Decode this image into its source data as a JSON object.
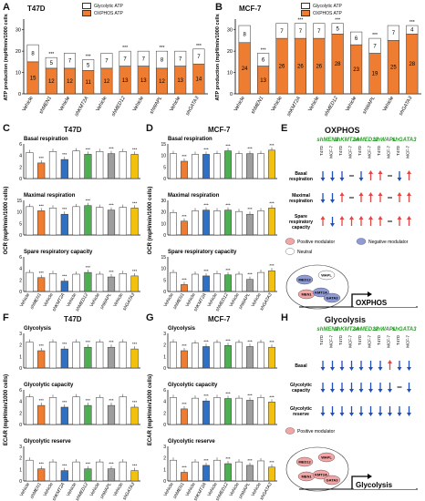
{
  "panels": {
    "A": {
      "label": "A",
      "title": "T47D"
    },
    "B": {
      "label": "B",
      "title": "MCF-7"
    },
    "C": {
      "label": "C",
      "title": "T47D"
    },
    "D": {
      "label": "D",
      "title": "MCF-7"
    },
    "E": {
      "label": "E",
      "title": "OXPHOS"
    },
    "F": {
      "label": "F",
      "title": "T47D"
    },
    "G": {
      "label": "G",
      "title": "MCF-7"
    },
    "H": {
      "label": "H",
      "title": "Glycolysis"
    }
  },
  "legend_atp": {
    "glyco": "Glycolytic ATP",
    "oxphos": "OXPHOS ATP"
  },
  "colors": {
    "orange": "#ee7d31",
    "blue": "#2f6fc4",
    "green": "#4caf50",
    "grey": "#9e9e9e",
    "yellow": "#f2c10f",
    "white": "#ffffff",
    "up": "#e64545",
    "down": "#1f4fbf",
    "gene": "#2a9d2a"
  },
  "oxphos_sub": [
    "Basal respiration",
    "Maximal respiration",
    "Spare respiratory capacity"
  ],
  "glyco_sub": [
    "Glycolysis",
    "Glycolytic capacity",
    "Glycolytic reserve"
  ],
  "ocr_ylabel": "OCR (mpH/min/1000 cells)",
  "ecar_ylabel": "ECAR (mpH/min/1000 cells)",
  "atp_ylabel": "ATP production (mpH/min/1000 cells)",
  "genes": [
    "shMEN1",
    "shKMT2A",
    "shMED12",
    "shWAPL",
    "shGATA3"
  ],
  "cells": [
    "T47D",
    "MCF-7"
  ],
  "oxphos_rows": [
    "Basal respiration",
    "Maximal respiration",
    "Spare respiratory capacity"
  ],
  "glyco_rows": [
    "Basal",
    "Glycolytic capacity",
    "Glycolytic reserve"
  ],
  "mod_legend": {
    "pos": "Positive modulator",
    "neg": "Negative modulator",
    "neutral": "Neutral"
  },
  "schematic": {
    "oxphos": "OXPHOS",
    "glycolysis": "Glycolysis",
    "proteins": [
      "MED12",
      "WAPL",
      "MEN1",
      "KMT2A",
      "GATA3"
    ]
  },
  "sig": "***",
  "chart_data": [
    {
      "type": "bar",
      "title": "T47D",
      "ylabel": "ATP production (mpH/min/1000 cells)",
      "categories": [
        "Vehicle",
        "shMEN1",
        "Vehicle",
        "shKMT2A",
        "Vehicle",
        "shMED12",
        "Vehicle",
        "shWAPL",
        "Vehicle",
        "shGATA3"
      ],
      "series": [
        {
          "name": "Glycolytic ATP",
          "values": [
            8,
            5,
            7,
            5,
            7,
            7,
            7,
            8,
            7,
            7
          ]
        },
        {
          "name": "OXPHOS ATP",
          "values": [
            15,
            12,
            12,
            11,
            12,
            13,
            13,
            12,
            13,
            14
          ]
        }
      ]
    },
    {
      "type": "bar",
      "title": "MCF-7",
      "ylabel": "ATP production (mpH/min/1000 cells)",
      "categories": [
        "Vehicle",
        "shMEN1",
        "Vehicle",
        "shKMT2A",
        "Vehicle",
        "shMED12",
        "Vehicle",
        "shWAPL",
        "Vehicle",
        "shGATA3"
      ],
      "series": [
        {
          "name": "Glycolytic ATP",
          "values": [
            8,
            6,
            7,
            7,
            7,
            5,
            6,
            7,
            7,
            4
          ]
        },
        {
          "name": "OXPHOS ATP",
          "values": [
            24,
            13,
            26,
            26,
            26,
            28,
            23,
            19,
            25,
            28
          ]
        }
      ]
    }
  ]
}
